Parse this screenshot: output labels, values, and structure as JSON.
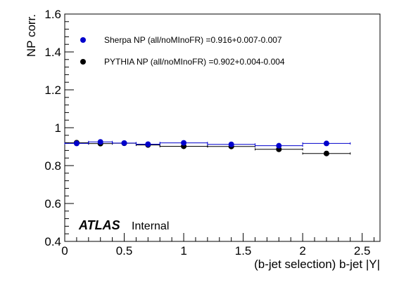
{
  "chart_data": {
    "type": "scatter",
    "title": "",
    "xlabel": "(b-jet selection) b-jet |Y|",
    "ylabel": "NP corr.",
    "xlim": [
      0,
      2.65
    ],
    "ylim": [
      0.4,
      1.6
    ],
    "x_ticks": [
      0,
      0.5,
      1,
      1.5,
      2,
      2.5
    ],
    "x_tick_labels": [
      "0",
      "0.5",
      "1",
      "1.5",
      "2",
      "2.5"
    ],
    "y_ticks": [
      0.4,
      0.6,
      0.8,
      1.0,
      1.2,
      1.4,
      1.6
    ],
    "y_tick_labels": [
      "0.4",
      "0.6",
      "0.8",
      "1",
      "1.2",
      "1.4",
      "1.6"
    ],
    "grid": false,
    "legend_position": "top-left",
    "series": [
      {
        "name": "Sherpa NP (all/noMInoFR) =0.916+0.007-0.007",
        "color": "#0000cc",
        "points": [
          {
            "x": 0.1,
            "y": 0.917,
            "xlo": 0.0,
            "xhi": 0.2
          },
          {
            "x": 0.3,
            "y": 0.925,
            "xlo": 0.2,
            "xhi": 0.4
          },
          {
            "x": 0.5,
            "y": 0.919,
            "xlo": 0.4,
            "xhi": 0.6
          },
          {
            "x": 0.7,
            "y": 0.913,
            "xlo": 0.6,
            "xhi": 0.8
          },
          {
            "x": 1.0,
            "y": 0.92,
            "xlo": 0.8,
            "xhi": 1.2
          },
          {
            "x": 1.4,
            "y": 0.912,
            "xlo": 1.2,
            "xhi": 1.6
          },
          {
            "x": 1.8,
            "y": 0.905,
            "xlo": 1.6,
            "xhi": 2.0
          },
          {
            "x": 2.2,
            "y": 0.917,
            "xlo": 2.0,
            "xhi": 2.4
          }
        ]
      },
      {
        "name": "PYTHIA NP (all/noMInoFR) =0.902+0.004-0.004",
        "color": "#000000",
        "points": [
          {
            "x": 0.1,
            "y": 0.921,
            "xlo": 0.0,
            "xhi": 0.2
          },
          {
            "x": 0.3,
            "y": 0.916,
            "xlo": 0.2,
            "xhi": 0.4
          },
          {
            "x": 0.5,
            "y": 0.918,
            "xlo": 0.4,
            "xhi": 0.6
          },
          {
            "x": 0.7,
            "y": 0.909,
            "xlo": 0.6,
            "xhi": 0.8
          },
          {
            "x": 1.0,
            "y": 0.902,
            "xlo": 0.8,
            "xhi": 1.2
          },
          {
            "x": 1.4,
            "y": 0.901,
            "xlo": 1.2,
            "xhi": 1.6
          },
          {
            "x": 1.8,
            "y": 0.886,
            "xlo": 1.6,
            "xhi": 2.0
          },
          {
            "x": 2.2,
            "y": 0.864,
            "xlo": 2.0,
            "xhi": 2.4
          }
        ]
      }
    ],
    "annotations": {
      "experiment": "ATLAS",
      "status": "Internal"
    }
  }
}
